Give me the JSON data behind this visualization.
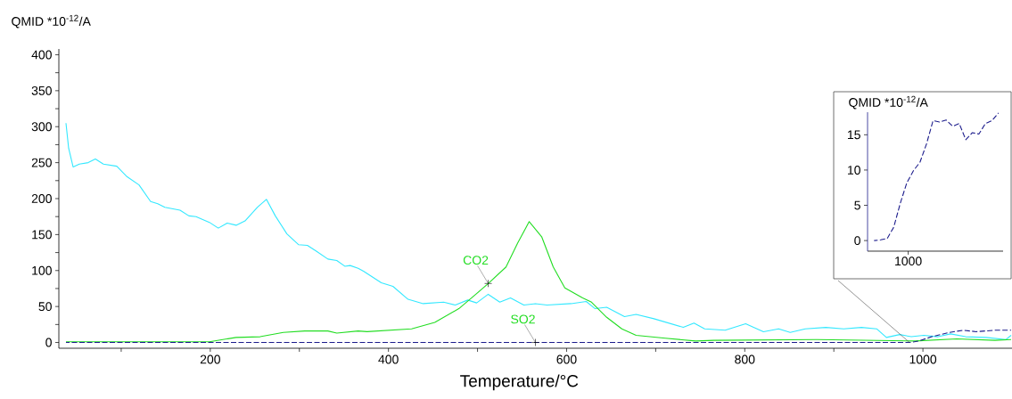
{
  "chart_data": [
    {
      "type": "line",
      "xlabel": "Temperature/°C",
      "ylabel": "QMID *10$^{-12}$/A",
      "xlim": [
        30,
        1100
      ],
      "ylim": [
        -8,
        408
      ],
      "xticks": [
        {
          "value": 100,
          "label": null
        },
        200,
        {
          "value": 300,
          "label": null
        },
        400,
        {
          "value": 500,
          "label": null
        },
        600,
        {
          "value": 700,
          "label": null
        },
        800,
        {
          "value": 900,
          "label": null
        },
        1000
      ],
      "yticks": [
        0,
        {
          "value": 25,
          "label": null
        },
        50,
        {
          "value": 75,
          "label": null
        },
        100,
        {
          "value": 125,
          "label": null
        },
        150,
        {
          "value": 175,
          "label": null
        },
        200,
        {
          "value": 225,
          "label": null
        },
        250,
        {
          "value": 275,
          "label": null
        },
        300,
        {
          "value": 325,
          "label": null
        },
        350,
        {
          "value": 375,
          "label": null
        },
        400
      ],
      "series": [
        {
          "color": "#33e8ff",
          "x": [
            38,
            41,
            46,
            53,
            63,
            71,
            80,
            95,
            106,
            120,
            133,
            141,
            149,
            166,
            176,
            184,
            199,
            209,
            219,
            229,
            239,
            253,
            263,
            273,
            286,
            299,
            309,
            319,
            332,
            342,
            351,
            357,
            366,
            372,
            392,
            405,
            422,
            439,
            462,
            475,
            489,
            499,
            512,
            525,
            537,
            552,
            565,
            578,
            605,
            622,
            632,
            645,
            665,
            678,
            698,
            731,
            743,
            755,
            778,
            801,
            821,
            838,
            851,
            868,
            891,
            911,
            931,
            948,
            959,
            974,
            987,
            1001,
            1017,
            1031,
            1048,
            1071,
            1093,
            1099
          ],
          "values": [
            305,
            270,
            244,
            248,
            250,
            255,
            248,
            245,
            231,
            219,
            196,
            193,
            188,
            184,
            176,
            175,
            167,
            159,
            166,
            163,
            169,
            188,
            199,
            176,
            151,
            136,
            135,
            127,
            116,
            114,
            106,
            107,
            103,
            99,
            83,
            78,
            60,
            54,
            56,
            52,
            59,
            55,
            67,
            56,
            62,
            52,
            54,
            52,
            54,
            57,
            47,
            49,
            36,
            39,
            33,
            21,
            27,
            19,
            17,
            26,
            15,
            19,
            14,
            19,
            21,
            19,
            21,
            19,
            7,
            11,
            8,
            10,
            8,
            12,
            8,
            7,
            4,
            10
          ]
        },
        {
          "color": "#22dd22",
          "x": [
            38,
            199,
            229,
            256,
            282,
            306,
            332,
            342,
            366,
            376,
            426,
            452,
            479,
            499,
            512,
            532,
            545,
            558,
            572,
            585,
            598,
            618,
            628,
            645,
            662,
            678,
            711,
            745,
            765,
            881,
            991,
            1038,
            1081,
            1099
          ],
          "values": [
            1,
            1,
            7,
            8,
            14,
            16,
            16,
            13,
            16,
            15,
            19,
            28,
            47,
            68,
            82,
            105,
            138,
            168,
            147,
            105,
            76,
            62,
            56,
            35,
            19,
            10,
            6,
            2,
            3,
            4,
            2,
            5,
            3,
            4
          ]
        },
        {
          "color": "#1c1c8c",
          "line_style": "dashed",
          "x": [
            38,
            985,
            995,
            1010,
            1030,
            1045,
            1060,
            1080,
            1099
          ],
          "values": [
            0,
            0,
            2,
            8,
            14,
            17,
            15,
            17,
            17
          ]
        }
      ],
      "annotations": [
        {
          "text": "CO2",
          "x": 512,
          "y": 82
        },
        {
          "text": "SO2",
          "x": 565,
          "y": 0
        }
      ]
    },
    {
      "type": "line",
      "ylabel": "QMID *10$^{-12}$/A",
      "categories": [
        null,
        null,
        null,
        null,
        null,
        null,
        null,
        null,
        null,
        null,
        null,
        null,
        null,
        null,
        null,
        null,
        null,
        null,
        null,
        null
      ],
      "ylim": [
        -1.5,
        18.2
      ],
      "yticks": [
        0,
        5,
        10,
        15
      ],
      "annotations": [
        "1000"
      ],
      "series": [
        {
          "color": "#1c1c8c",
          "line_style": "dashed",
          "values": [
            0,
            0.1,
            0.3,
            1.9,
            5.3,
            8.2,
            9.9,
            11.1,
            13.7,
            17.0,
            16.8,
            17.1,
            16.2,
            16.6,
            14.3,
            15.3,
            15.1,
            16.6,
            17.0,
            18.1
          ]
        }
      ]
    }
  ]
}
